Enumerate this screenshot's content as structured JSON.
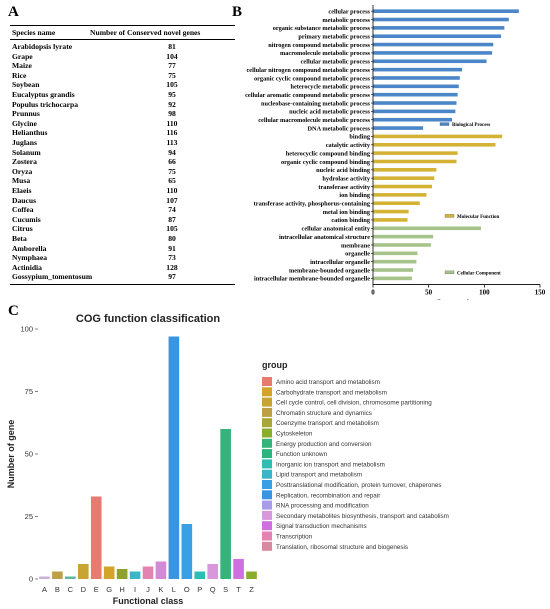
{
  "panels": {
    "a": "A",
    "b": "B",
    "c": "C"
  },
  "table": {
    "headers": [
      "Species name",
      "Number of Conserved novel genes"
    ],
    "rows": [
      {
        "species": "Arabidopsis lyrate",
        "count": 81
      },
      {
        "species": "Grape",
        "count": 104
      },
      {
        "species": "Maize",
        "count": 77
      },
      {
        "species": "Rice",
        "count": 75
      },
      {
        "species": "Soybean",
        "count": 105
      },
      {
        "species": "Eucalyptus grandis",
        "count": 95
      },
      {
        "species": "Populus trichocarpa",
        "count": 92
      },
      {
        "species": "Prunnus",
        "count": 98
      },
      {
        "species": "Glycine",
        "count": 110
      },
      {
        "species": "Helianthus",
        "count": 116
      },
      {
        "species": "Juglans",
        "count": 113
      },
      {
        "species": "Solanum",
        "count": 94
      },
      {
        "species": "Zostera",
        "count": 66
      },
      {
        "species": "Oryza",
        "count": 75
      },
      {
        "species": "Musa",
        "count": 65
      },
      {
        "species": "Elaeis",
        "count": 110
      },
      {
        "species": "Daucus",
        "count": 107
      },
      {
        "species": "Coffea",
        "count": 74
      },
      {
        "species": "Cucumis",
        "count": 87
      },
      {
        "species": "Citrus",
        "count": 105
      },
      {
        "species": "Beta",
        "count": 80
      },
      {
        "species": "Amborella",
        "count": 91
      },
      {
        "species": "Nymphaea",
        "count": 73
      },
      {
        "species": "Actinidia",
        "count": 128
      },
      {
        "species": "Gossypium_tomentosum",
        "count": 97
      }
    ]
  },
  "chart_data": [
    {
      "type": "bar",
      "orientation": "horizontal",
      "xlabel": "Gene number",
      "xlim": [
        0,
        150
      ],
      "xticks": [
        0,
        50,
        100,
        150
      ],
      "grid": false,
      "categories": [
        "cellular process",
        "metabolic process",
        "organic substance metabolic process",
        "primary metabolic process",
        "nitrogen compound metabolic process",
        "macromolecule metabolic process",
        "cellular metabolic process",
        "cellular nitrogen compound metabolic process",
        "organic cyclic compound metabolic process",
        "heterocycle metabolic process",
        "cellular aromatic compound metabolic process",
        "nucleobase-containing metabolic process",
        "nucleic acid metabolic process",
        "cellular macromolecule metabolic process",
        "DNA metabolic process",
        "binding",
        "catalytic activity",
        "heterocyclic compound binding",
        "organic cyclic compound binding",
        "nucleic acid binding",
        "hydrolase activity",
        "transferase activity",
        "ion binding",
        "transferase activity, phosphorus-containing",
        "metal ion binding",
        "cation binding",
        "cellular anatomical entity",
        "intracellular anatomical structure",
        "membrane",
        "organelle",
        "intracellular organelle",
        "membrane-bounded organelle",
        "intracellular membrane-bounded organelle"
      ],
      "values": [
        131,
        122,
        118,
        115,
        108,
        107,
        102,
        80,
        78,
        77,
        76,
        75,
        74,
        71,
        45,
        116,
        110,
        76,
        75,
        57,
        55,
        53,
        48,
        42,
        32,
        31,
        97,
        54,
        52,
        40,
        39,
        36,
        35
      ],
      "groups": [
        {
          "name": "Biological Process",
          "count": 15,
          "color": "#4a86c8"
        },
        {
          "name": "Molecular Function",
          "count": 11,
          "color": "#d4b235"
        },
        {
          "name": "Cellular Component",
          "count": 7,
          "color": "#a6c48a"
        }
      ]
    },
    {
      "type": "bar",
      "title": "COG function classification",
      "xlabel": "Functional class",
      "ylabel": "Number of gene",
      "ylim": [
        0,
        100
      ],
      "yticks": [
        0,
        25,
        50,
        75,
        100
      ],
      "grid": false,
      "legend_title": "group",
      "legend_position": "right",
      "categories": [
        "A",
        "B",
        "C",
        "D",
        "E",
        "G",
        "H",
        "I",
        "J",
        "K",
        "L",
        "O",
        "P",
        "Q",
        "S",
        "T",
        "Z"
      ],
      "values": [
        1,
        3,
        1,
        6,
        33,
        5,
        4,
        3,
        5,
        7,
        97,
        22,
        3,
        6,
        60,
        8,
        3
      ],
      "colors": [
        "#c8b2d8",
        "#bda045",
        "#60b69a",
        "#c8a432",
        "#e87a70",
        "#d2a42a",
        "#8ea02e",
        "#3ab6c8",
        "#e283b2",
        "#d08ad6",
        "#3a95e0",
        "#3aa0e6",
        "#2fbcb2",
        "#d898dc",
        "#34b47a",
        "#d070e0",
        "#8bad2c"
      ],
      "legend": [
        {
          "name": "Amino acid transport and metabolism",
          "color": "#e87a70"
        },
        {
          "name": "Carbohydrate transport and metabolism",
          "color": "#d2a42a"
        },
        {
          "name": "Cell cycle control, cell division, chromosome partitioning",
          "color": "#c8a432"
        },
        {
          "name": "Chromatin structure and dynamics",
          "color": "#bda045"
        },
        {
          "name": "Coenzyme transport and metabolism",
          "color": "#a8a638"
        },
        {
          "name": "Cytoskeleton",
          "color": "#8bad2c"
        },
        {
          "name": "Energy production and conversion",
          "color": "#34b47a"
        },
        {
          "name": "Function unknown",
          "color": "#2ab57c"
        },
        {
          "name": "Inorganic ion transport and metabolism",
          "color": "#2fbcb2"
        },
        {
          "name": "Lipid transport and metabolism",
          "color": "#3ab6c8"
        },
        {
          "name": "Posttranslational modification, protein turnover, chaperones",
          "color": "#3aa0e6"
        },
        {
          "name": "Replication, recombination and repair",
          "color": "#3a95e0"
        },
        {
          "name": "RNA processing and modification",
          "color": "#a99ce8"
        },
        {
          "name": "Secondary metabolites biosynthesis, transport and catabolism",
          "color": "#d898dc"
        },
        {
          "name": "Signal transduction mechanisms",
          "color": "#d070e0"
        },
        {
          "name": "Transcription",
          "color": "#e283b2"
        },
        {
          "name": "Translation, ribosomal structure and biogenesis",
          "color": "#d88aa0"
        }
      ]
    }
  ]
}
